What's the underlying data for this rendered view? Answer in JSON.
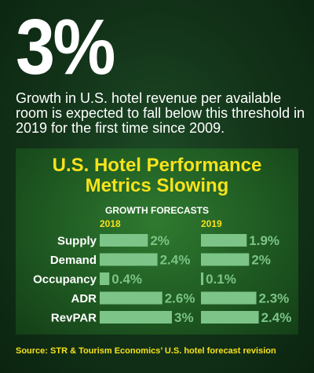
{
  "headline_stat": "3%",
  "headline_text": "Growth in U.S. hotel revenue per available room is expected to fall below this threshold in 2019 for the first time since 2009.",
  "source": "Source: STR & Tourism Economics’ U.S. hotel forecast revision",
  "colors": {
    "background": "#123218",
    "panel": "#2f7a30",
    "title": "#f6e21c",
    "bar": "#7cc487",
    "text": "#ffffff"
  },
  "chart_data": {
    "type": "bar",
    "title_line1": "U.S. Hotel Performance",
    "title_line2": "Metrics Slowing",
    "subtitle": "GROWTH FORECASTS",
    "categories": [
      "Supply",
      "Demand",
      "Occupancy",
      "ADR",
      "RevPAR"
    ],
    "series": [
      {
        "name": "2018",
        "values": [
          2.0,
          2.4,
          0.4,
          2.6,
          3.0
        ],
        "labels": [
          "2%",
          "2.4%",
          "0.4%",
          "2.6%",
          "3%"
        ]
      },
      {
        "name": "2019",
        "values": [
          1.9,
          2.0,
          0.1,
          2.3,
          2.4
        ],
        "labels": [
          "1.9%",
          "2%",
          "0.1%",
          "2.3%",
          "2.4%"
        ]
      }
    ],
    "unit": "%",
    "orientation": "horizontal",
    "ylim": [
      0,
      3.0
    ],
    "grid": false,
    "legend": "column headers"
  }
}
